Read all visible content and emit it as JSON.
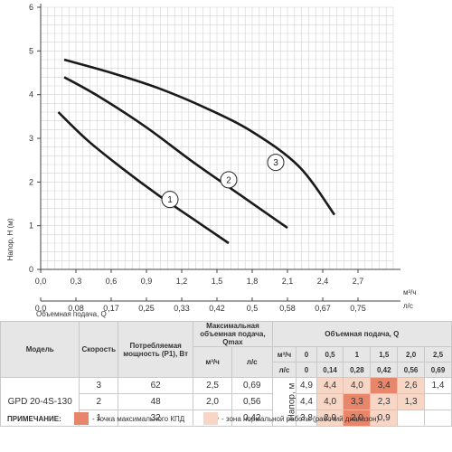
{
  "chart_data": {
    "type": "line",
    "ylabel": "Напор, Н (м)",
    "xlabel": "Объемная подача, Q",
    "x_unit_top": "м³/ч",
    "x_unit_bottom": "л/с",
    "xlim": [
      0,
      3.0
    ],
    "ylim": [
      0,
      6
    ],
    "x_ticks": [
      "0,0",
      "0,3",
      "0,6",
      "0,9",
      "1,2",
      "1,5",
      "1,8",
      "2,1",
      "2,4",
      "2,7"
    ],
    "x_tick_values": [
      0,
      0.3,
      0.6,
      0.9,
      1.2,
      1.5,
      1.8,
      2.1,
      2.4,
      2.7
    ],
    "x2_ticks": [
      "0,0",
      "0,08",
      "0,17",
      "0,25",
      "0,33",
      "0,42",
      "0,5",
      "0,58",
      "0,67",
      "0,75"
    ],
    "y_ticks": [
      "0",
      "1",
      "2",
      "3",
      "4",
      "5",
      "6"
    ],
    "y_tick_values": [
      0,
      1,
      2,
      3,
      4,
      5,
      6
    ],
    "grid": true,
    "series": [
      {
        "name": "1",
        "x": [
          0.15,
          0.4,
          0.7,
          1.0,
          1.3,
          1.6
        ],
        "y": [
          3.6,
          2.95,
          2.3,
          1.7,
          1.15,
          0.6
        ]
      },
      {
        "name": "2",
        "x": [
          0.2,
          0.5,
          0.9,
          1.3,
          1.7,
          2.1
        ],
        "y": [
          4.4,
          3.95,
          3.25,
          2.45,
          1.7,
          0.95
        ]
      },
      {
        "name": "3",
        "x": [
          0.2,
          0.6,
          1.0,
          1.4,
          1.8,
          2.2,
          2.5
        ],
        "y": [
          4.8,
          4.5,
          4.15,
          3.7,
          3.15,
          2.35,
          1.25
        ]
      }
    ],
    "series_labels": [
      {
        "name": "1",
        "x": 1.1,
        "y": 1.6
      },
      {
        "name": "2",
        "x": 1.6,
        "y": 2.05
      },
      {
        "name": "3",
        "x": 2.0,
        "y": 2.45
      }
    ]
  },
  "table": {
    "headers": {
      "model": "Модель",
      "speed": "Скорость",
      "power": "Потребляемая мощность (P1), Вт",
      "max_flow": "Максимальная объемная подача, Qmax",
      "max_m3": "м³/ч",
      "max_ls": "л/с",
      "flow": "Объемная подача, Q",
      "m3_unit": "м³/ч",
      "ls_unit": "л/с",
      "napor": "Напор, м"
    },
    "q_m3": [
      "0",
      "0,5",
      "1",
      "1,5",
      "2,0",
      "2,5"
    ],
    "q_ls": [
      "0",
      "0,14",
      "0,28",
      "0,42",
      "0,56",
      "0,69"
    ],
    "model_name": "GPD 20-4S-130",
    "rows": [
      {
        "speed": "3",
        "power": "62",
        "qmax_m3": "2,5",
        "qmax_ls": "0,69",
        "heads": [
          "4,9",
          "4,4",
          "4,0",
          "3,4",
          "2,6",
          "1,4"
        ],
        "zones": [
          "",
          "norm",
          "norm",
          "max",
          "norm",
          ""
        ]
      },
      {
        "speed": "2",
        "power": "48",
        "qmax_m3": "2,0",
        "qmax_ls": "0,56",
        "heads": [
          "4,4",
          "4,0",
          "3,3",
          "2,3",
          "1,3",
          ""
        ],
        "zones": [
          "",
          "norm",
          "max",
          "norm",
          "norm",
          ""
        ]
      },
      {
        "speed": "1",
        "power": "32",
        "qmax_m3": "1,5",
        "qmax_ls": "0,42",
        "heads": [
          "3,8",
          "2,9",
          "2,0",
          "0,9",
          "",
          ""
        ],
        "zones": [
          "",
          "norm",
          "max",
          "norm",
          "",
          ""
        ]
      }
    ]
  },
  "note": {
    "title": "ПРИМЕЧАНИЕ:",
    "max_text": "- точка максимального КПД",
    "norm_text": "- зона нормальной работы (рабочий диапазон)",
    "max_color": "#e8866b",
    "norm_color": "#f7d6c6"
  }
}
